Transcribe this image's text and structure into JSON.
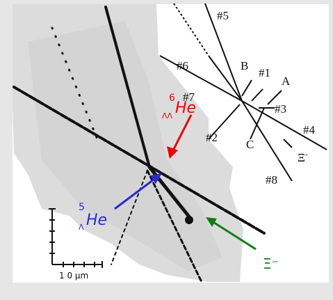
{
  "track_labels": [
    "#5",
    "#6",
    "#1",
    "B",
    "A",
    "#7",
    "#3",
    "#2",
    "C",
    "#4",
    "#8"
  ],
  "xi_schematic": {
    "symbol": "Ξ",
    "charge": "-"
  },
  "double_hyper": {
    "mass": "6",
    "sub": "ΛΛ",
    "element": "He"
  },
  "single_hyper": {
    "mass": "5",
    "sub": "Λ",
    "element": "He"
  },
  "xi_photo": "Ξ⁻",
  "scale_label": "1 0 μm"
}
